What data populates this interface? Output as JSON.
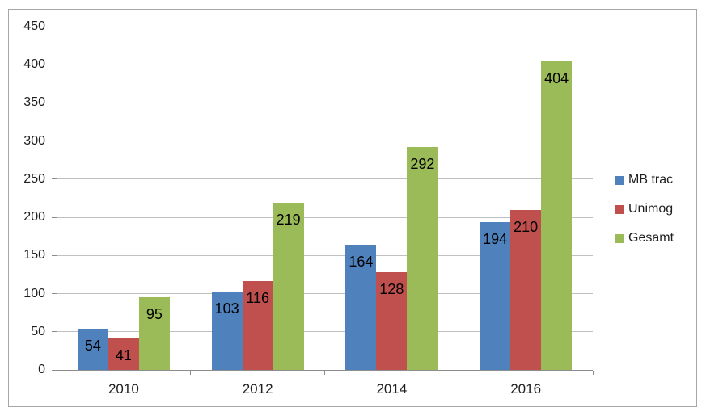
{
  "chart_data": {
    "type": "bar",
    "title": "",
    "xlabel": "",
    "ylabel": "",
    "categories": [
      "2010",
      "2012",
      "2014",
      "2016"
    ],
    "series": [
      {
        "name": "MB trac",
        "color": "#4F81BD",
        "values": [
          54,
          103,
          164,
          194
        ]
      },
      {
        "name": "Unimog",
        "color": "#C0504D",
        "values": [
          41,
          116,
          128,
          210
        ]
      },
      {
        "name": "Gesamt",
        "color": "#9BBB59",
        "values": [
          95,
          219,
          292,
          404
        ]
      }
    ],
    "ylim": [
      0,
      450
    ],
    "ytick_step": 50,
    "ytick_labels": [
      "0",
      "50",
      "100",
      "150",
      "200",
      "250",
      "300",
      "350",
      "400",
      "450"
    ],
    "grid": "horizontal",
    "legend_position": "right",
    "data_labels": "inside-end",
    "colors": {
      "gridline": "#c0c0c0",
      "axis_line": "#8c8c8c",
      "frame_border": "#a6a6a6",
      "label_text": "#1f1f1f"
    }
  }
}
